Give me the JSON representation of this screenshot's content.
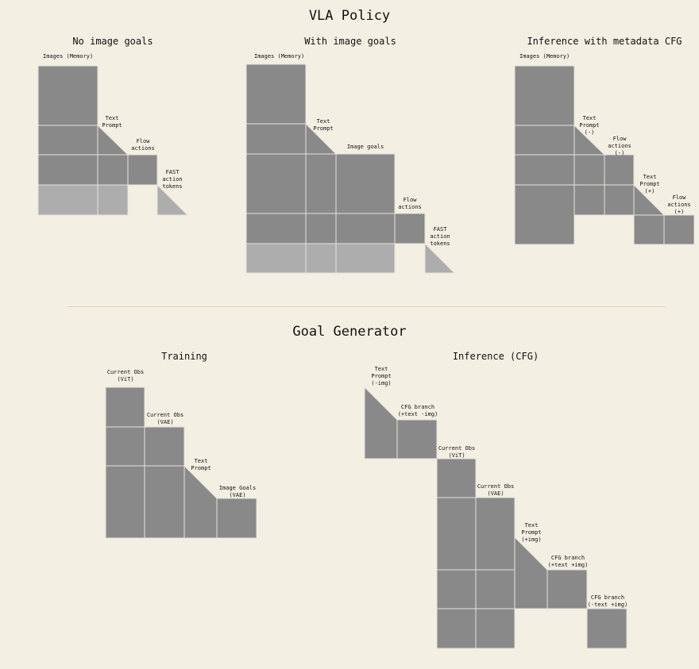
{
  "colors": {
    "background": "#f4efe3",
    "block": "#898989",
    "masked": "#adadad",
    "line": "#e2d3b4",
    "grid": "#e6e3dc"
  },
  "vla": {
    "title": "VLA Policy",
    "panel1": {
      "title": "No image goals",
      "images": "Images (Memory)",
      "text_prompt": "Text\nPrompt",
      "flow_actions": "Flow\nactions",
      "fast_tokens": "FAST\naction\ntokens"
    },
    "panel2": {
      "title": "With image goals",
      "images": "Images (Memory)",
      "text_prompt": "Text\nPrompt",
      "image_goals": "Image goals",
      "flow_actions": "Flow\nactions",
      "fast_tokens": "FAST\naction\ntokens"
    },
    "panel3": {
      "title": "Inference with metadata CFG",
      "images": "Images (Memory)",
      "text_prompt_neg": "Text\nPrompt\n(-)",
      "flow_actions_neg": "Flow\nactions\n(-)",
      "text_prompt_pos": "Text\nPrompt\n(+)",
      "flow_actions_pos": "Flow\nactions\n(+)"
    }
  },
  "goal": {
    "title": "Goal Generator",
    "training": {
      "title": "Training",
      "current_obs_vit": "Current Obs\n(ViT)",
      "current_obs_vae": "Current Obs\n(VAE)",
      "text_prompt": "Text\nPrompt",
      "image_goals": "Image Goals\n(VAE)"
    },
    "inference": {
      "title": "Inference (CFG)",
      "text_prompt_neg": "Text\nPrompt\n(-img)",
      "cfg_branch_1": "CFG branch\n(+text -img)",
      "current_obs_vit": "Current Obs\n(ViT)",
      "current_obs_vae": "Current Obs\n(VAE)",
      "text_prompt_pos": "Text\nPrompt\n(+img)",
      "cfg_branch_2": "CFG branch\n(+text +img)",
      "cfg_branch_3": "CFG branch\n(-text +img)"
    }
  }
}
